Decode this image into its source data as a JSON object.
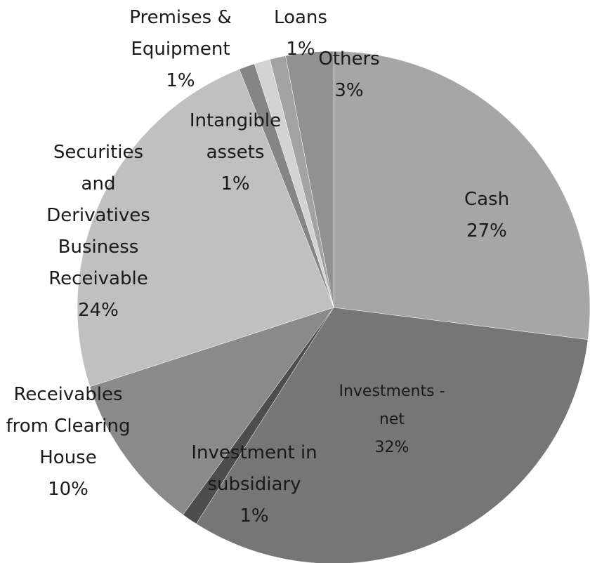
{
  "chart_data": {
    "type": "pie",
    "categories": [
      "Cash",
      "Investments - net",
      "Investment in subsidiary",
      "Receivables from Clearing House",
      "Securities and Derivatives Business Receivable",
      "Intangible assets",
      "Premises & Equipment",
      "Loans",
      "Others"
    ],
    "values": [
      27,
      32,
      1,
      10,
      24,
      1,
      1,
      1,
      3
    ],
    "value_labels": [
      "27%",
      "32%",
      "1%",
      "10%",
      "24%",
      "1%",
      "1%",
      "1%",
      "3%"
    ],
    "colors": [
      "#a6a6a6",
      "#767676",
      "#4d4d4d",
      "#8a8a8a",
      "#c0c0c0",
      "#858585",
      "#d3d3d3",
      "#a3a3a3",
      "#919191"
    ]
  }
}
